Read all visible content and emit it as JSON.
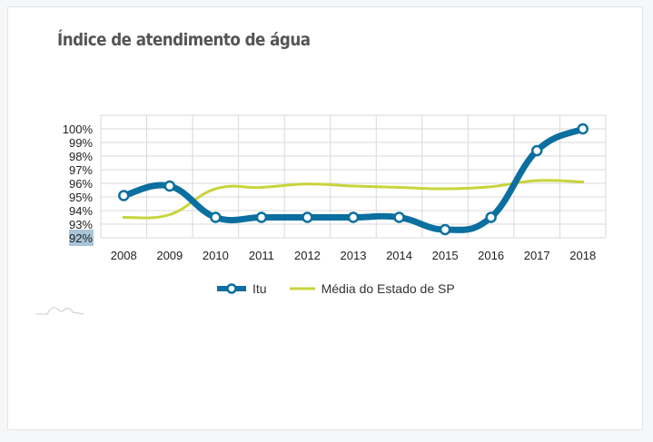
{
  "card": {
    "title": "Índice de atendimento de água"
  },
  "colors": {
    "itu": "#0b6f9f",
    "media": "#c8d43c",
    "grid": "#d9d9d9",
    "highlight": "#a9c4d8"
  },
  "chart_data": {
    "type": "line",
    "title": "Índice de atendimento de água",
    "xlabel": "",
    "ylabel": "",
    "categories": [
      "2008",
      "2009",
      "2010",
      "2011",
      "2012",
      "2013",
      "2014",
      "2015",
      "2016",
      "2017",
      "2018"
    ],
    "y_tick_labels": [
      "100%",
      "99%",
      "98%",
      "97%",
      "96%",
      "95%",
      "94%",
      "93%",
      "92%"
    ],
    "y_ticks": [
      100,
      99,
      98,
      97,
      96,
      95,
      94,
      93,
      92
    ],
    "ylim": [
      92,
      100.9
    ],
    "grid": true,
    "legend_position": "bottom",
    "series": [
      {
        "name": "Itu",
        "values": [
          95.1,
          95.8,
          93.5,
          93.5,
          93.5,
          93.5,
          93.5,
          92.6,
          93.5,
          98.4,
          100.0
        ],
        "markers": true
      },
      {
        "name": "Média do Estado de SP",
        "values": [
          93.5,
          93.7,
          95.6,
          95.7,
          95.95,
          95.8,
          95.7,
          95.6,
          95.75,
          96.2,
          96.1
        ],
        "markers": false
      }
    ]
  }
}
